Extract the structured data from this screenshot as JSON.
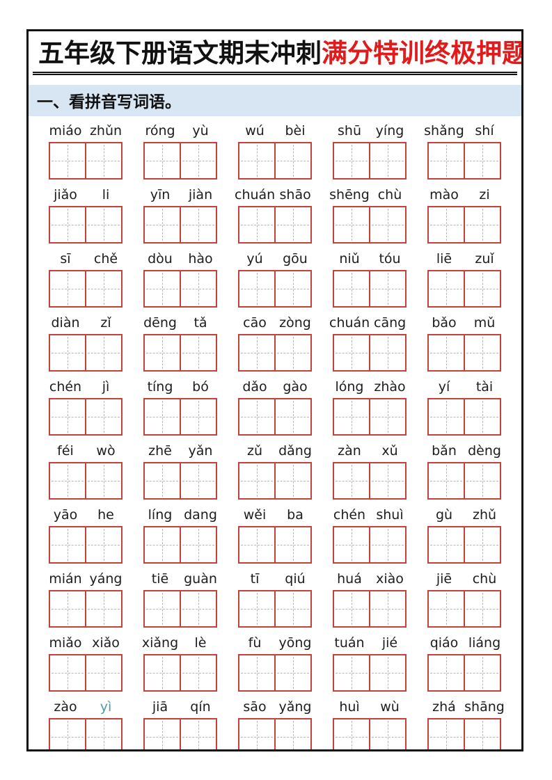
{
  "title": {
    "black_part": "五年级下册语文期末冲刺",
    "red_part": "满分特训终极押题",
    "red_color": "#e11b1b"
  },
  "section": {
    "label": "一、看拼音写词语。",
    "bg_color": "#d8e5f2"
  },
  "worksheet": {
    "columns": 5,
    "box_border_color": "#c4423a",
    "box_guide_color": "#eda0a0",
    "highlight_color": "#4e9e9e",
    "words": [
      {
        "syllables": [
          "miáo",
          "zhǔn"
        ]
      },
      {
        "syllables": [
          "róng",
          "yù"
        ]
      },
      {
        "syllables": [
          "wú",
          "bèi"
        ]
      },
      {
        "syllables": [
          "shū",
          "yíng"
        ]
      },
      {
        "syllables": [
          "shǎng",
          "shí"
        ]
      },
      {
        "syllables": [
          "jiǎo",
          "li"
        ]
      },
      {
        "syllables": [
          "yīn",
          "jiàn"
        ]
      },
      {
        "syllables": [
          "chuán",
          "shāo"
        ]
      },
      {
        "syllables": [
          "shēng",
          "chù"
        ]
      },
      {
        "syllables": [
          "mào",
          "zi"
        ]
      },
      {
        "syllables": [
          "sī",
          "chě"
        ]
      },
      {
        "syllables": [
          "dòu",
          "hào"
        ]
      },
      {
        "syllables": [
          "yú",
          "gōu"
        ]
      },
      {
        "syllables": [
          "niǔ",
          "tóu"
        ]
      },
      {
        "syllables": [
          "liē",
          "zuǐ"
        ]
      },
      {
        "syllables": [
          "diàn",
          "zǐ"
        ]
      },
      {
        "syllables": [
          "dēng",
          "tǎ"
        ]
      },
      {
        "syllables": [
          "cāo",
          "zòng"
        ]
      },
      {
        "syllables": [
          "chuán",
          "cāng"
        ]
      },
      {
        "syllables": [
          "bǎo",
          "mǔ"
        ]
      },
      {
        "syllables": [
          "chén",
          "jì"
        ]
      },
      {
        "syllables": [
          "tíng",
          "bó"
        ]
      },
      {
        "syllables": [
          "dǎo",
          "gào"
        ]
      },
      {
        "syllables": [
          "lóng",
          "zhào"
        ]
      },
      {
        "syllables": [
          "yí",
          "tài"
        ]
      },
      {
        "syllables": [
          "féi",
          "wò"
        ]
      },
      {
        "syllables": [
          "zhē",
          "yǎn"
        ]
      },
      {
        "syllables": [
          "zǔ",
          "dǎng"
        ]
      },
      {
        "syllables": [
          "zàn",
          "xǔ"
        ]
      },
      {
        "syllables": [
          "bǎn",
          "dèng"
        ]
      },
      {
        "syllables": [
          "yāo",
          "he"
        ]
      },
      {
        "syllables": [
          "líng",
          "dang"
        ]
      },
      {
        "syllables": [
          "wěi",
          "ba"
        ]
      },
      {
        "syllables": [
          "chén",
          "shuì"
        ]
      },
      {
        "syllables": [
          "gù",
          "zhǔ"
        ]
      },
      {
        "syllables": [
          "mián",
          "yáng"
        ]
      },
      {
        "syllables": [
          "tiē",
          "guàn"
        ]
      },
      {
        "syllables": [
          "tī",
          "qiú"
        ]
      },
      {
        "syllables": [
          "huá",
          "xiào"
        ]
      },
      {
        "syllables": [
          "jiē",
          "chù"
        ]
      },
      {
        "syllables": [
          "miǎo",
          "xiǎo"
        ]
      },
      {
        "syllables": [
          "xiǎng",
          "lè"
        ]
      },
      {
        "syllables": [
          "fù",
          "yōng"
        ]
      },
      {
        "syllables": [
          "tuán",
          "jié"
        ]
      },
      {
        "syllables": [
          "qiáo",
          "liáng"
        ]
      },
      {
        "syllables": [
          "zào",
          "yì"
        ],
        "colors": [
          null,
          "#4e9e9e"
        ]
      },
      {
        "syllables": [
          "jiā",
          "qín"
        ]
      },
      {
        "syllables": [
          "sāo",
          "yǎng"
        ]
      },
      {
        "syllables": [
          "huì",
          "wù"
        ]
      },
      {
        "syllables": [
          "zhá",
          "shāng"
        ]
      }
    ]
  }
}
